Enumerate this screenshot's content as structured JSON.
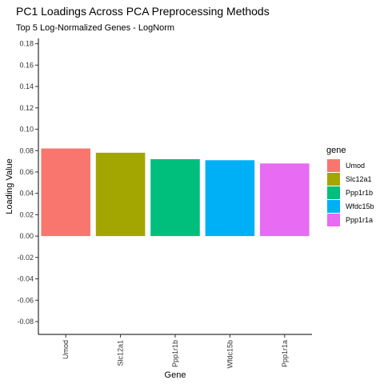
{
  "chart_data": {
    "type": "bar",
    "title": "PC1 Loadings Across PCA Preprocessing Methods",
    "subtitle": "Top 5 Log-Normalized Genes - LogNorm",
    "xlabel": "Gene",
    "ylabel": "Loading Value",
    "categories": [
      "Umod",
      "Slc12a1",
      "Ppp1r1b",
      "Wfdc15b",
      "Ppp1r1a"
    ],
    "values": [
      0.082,
      0.078,
      0.072,
      0.071,
      0.068
    ],
    "colors": [
      "#F8766D",
      "#A3A500",
      "#00BF7D",
      "#00B0F6",
      "#E76BF3"
    ],
    "ylim": [
      -0.092,
      0.185
    ],
    "yticks": [
      "0.18",
      "0.16",
      "0.14",
      "0.12",
      "0.10",
      "0.08",
      "0.06",
      "0.04",
      "0.02",
      "0.00",
      "-0.02",
      "-0.04",
      "-0.06",
      "-0.08"
    ],
    "ytick_values": [
      0.18,
      0.16,
      0.14,
      0.12,
      0.1,
      0.08,
      0.06,
      0.04,
      0.02,
      0.0,
      -0.02,
      -0.04,
      -0.06,
      -0.08
    ],
    "grid": false,
    "legend": {
      "title": "gene",
      "position": "right",
      "entries": [
        "Umod",
        "Slc12a1",
        "Ppp1r1b",
        "Wfdc15b",
        "Ppp1r1a"
      ]
    }
  }
}
